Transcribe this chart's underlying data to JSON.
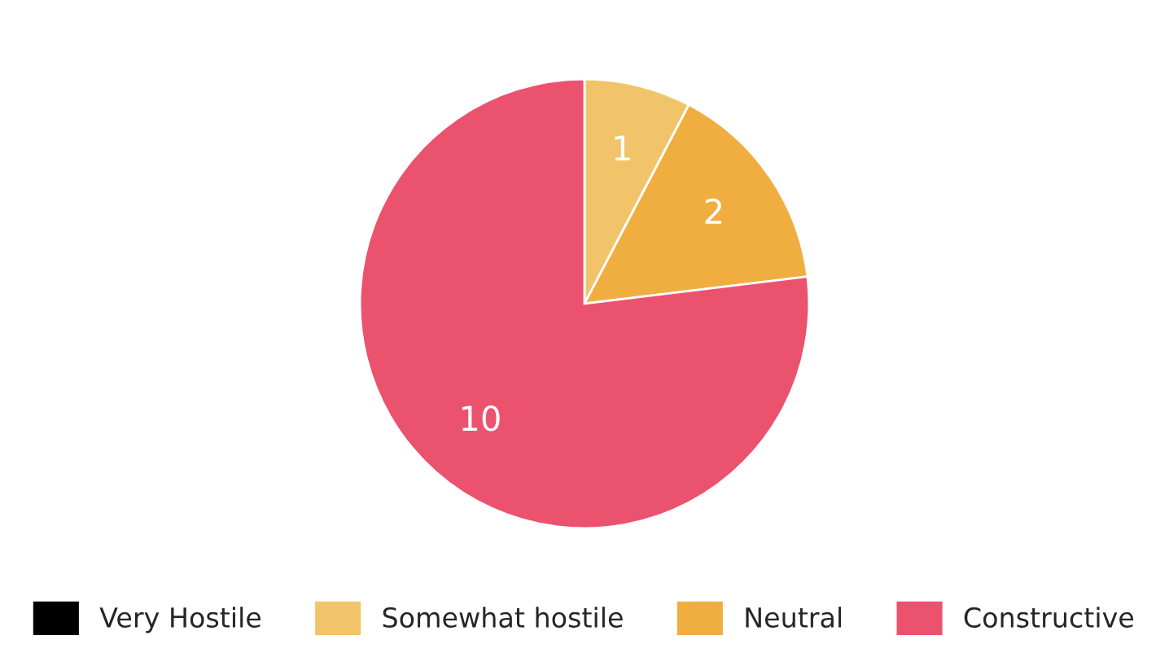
{
  "chart_data": {
    "type": "pie",
    "categories": [
      "Very Hostile",
      "Somewhat hostile",
      "Neutral",
      "Constructive"
    ],
    "values": [
      0,
      1,
      2,
      10
    ],
    "colors": [
      "#000000",
      "#f2c46a",
      "#f0ae40",
      "#eb526e"
    ],
    "value_labels": [
      null,
      "1",
      "2",
      "10"
    ],
    "legend": "bottom"
  }
}
